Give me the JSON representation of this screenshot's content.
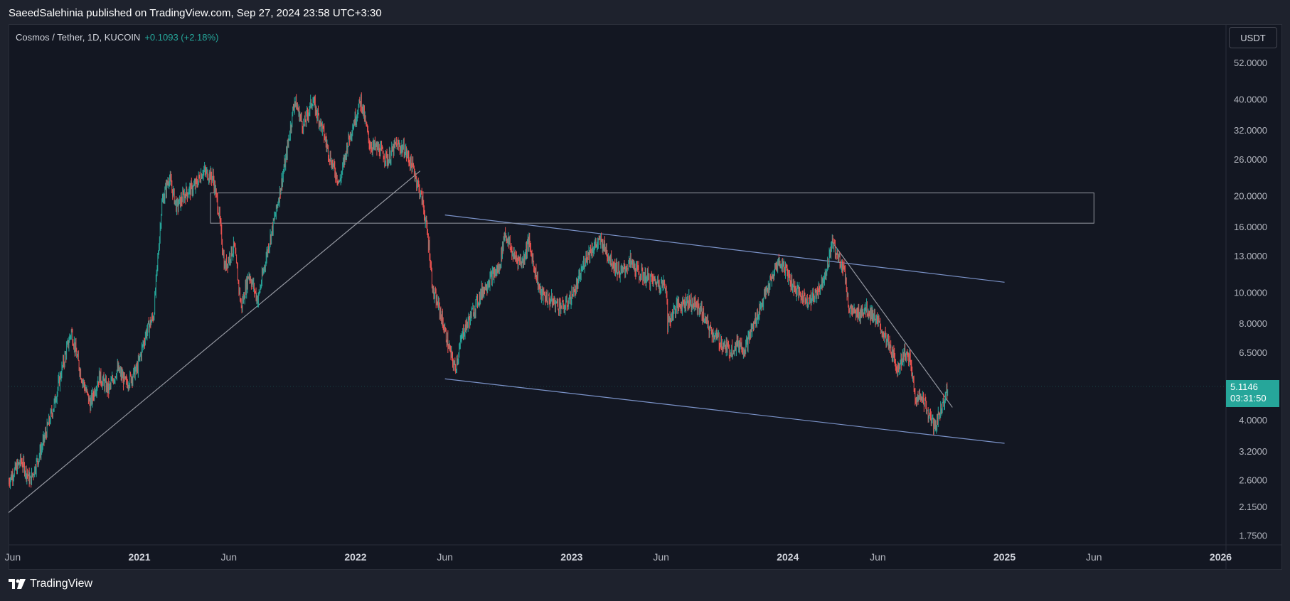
{
  "header": {
    "published": "SaeedSalehinia published on TradingView.com, Sep 27, 2024 23:58 UTC+3:30"
  },
  "legend": {
    "symbol": "Cosmos / Tether, 1D, KUCOIN",
    "change": "+0.1093 (+2.18%)"
  },
  "currency_button": "USDT",
  "price_tag": {
    "price": "5.1146",
    "countdown": "03:31:50"
  },
  "brand": {
    "name": "TradingView"
  },
  "colors": {
    "up": "#26a69a",
    "down": "#ef5350",
    "channel": "#7b93c9",
    "trendline": "#9598a1",
    "background": "#131722"
  },
  "chart_data": {
    "type": "candlestick",
    "title": "Cosmos / Tether, 1D, KUCOIN",
    "y_scale": "log",
    "y_ticks": [
      "52.0000",
      "40.0000",
      "32.0000",
      "26.0000",
      "20.0000",
      "16.0000",
      "13.0000",
      "10.0000",
      "8.0000",
      "6.5000",
      "4.0000",
      "3.2000",
      "2.6000",
      "2.1500",
      "1.7500"
    ],
    "x_ticks": [
      "Jun",
      "2021",
      "Jun",
      "2022",
      "Jun",
      "2023",
      "Jun",
      "2024",
      "Jun",
      "2025",
      "Jun",
      "2026"
    ],
    "x_range": [
      "2020-05-25",
      "2026-01-10"
    ],
    "y_range": [
      1.7,
      55
    ],
    "price_path": [
      [
        "2020-05-25",
        2.6
      ],
      [
        "2020-06-15",
        3.0
      ],
      [
        "2020-07-01",
        2.6
      ],
      [
        "2020-07-20",
        3.3
      ],
      [
        "2020-08-10",
        4.5
      ],
      [
        "2020-08-25",
        6.0
      ],
      [
        "2020-09-08",
        7.6
      ],
      [
        "2020-09-25",
        5.5
      ],
      [
        "2020-10-10",
        4.5
      ],
      [
        "2020-10-25",
        5.5
      ],
      [
        "2020-11-10",
        5.0
      ],
      [
        "2020-11-25",
        5.8
      ],
      [
        "2020-12-10",
        5.2
      ],
      [
        "2020-12-28",
        5.8
      ],
      [
        "2021-01-12",
        7.5
      ],
      [
        "2021-01-25",
        8.5
      ],
      [
        "2021-02-08",
        19.0
      ],
      [
        "2021-02-20",
        23.0
      ],
      [
        "2021-03-05",
        18.5
      ],
      [
        "2021-03-20",
        20.5
      ],
      [
        "2021-04-05",
        21.5
      ],
      [
        "2021-04-18",
        24.0
      ],
      [
        "2021-05-05",
        23.0
      ],
      [
        "2021-05-15",
        18.0
      ],
      [
        "2021-05-25",
        12.0
      ],
      [
        "2021-06-10",
        14.0
      ],
      [
        "2021-06-22",
        9.0
      ],
      [
        "2021-07-05",
        11.5
      ],
      [
        "2021-07-20",
        9.5
      ],
      [
        "2021-08-05",
        13.5
      ],
      [
        "2021-08-20",
        18.0
      ],
      [
        "2021-09-05",
        26.0
      ],
      [
        "2021-09-20",
        40.0
      ],
      [
        "2021-10-05",
        33.0
      ],
      [
        "2021-10-20",
        40.0
      ],
      [
        "2021-11-05",
        33.0
      ],
      [
        "2021-11-20",
        26.0
      ],
      [
        "2021-12-05",
        22.0
      ],
      [
        "2021-12-20",
        30.0
      ],
      [
        "2022-01-10",
        40.0
      ],
      [
        "2022-01-25",
        29.0
      ],
      [
        "2022-02-10",
        28.0
      ],
      [
        "2022-02-25",
        26.0
      ],
      [
        "2022-03-10",
        29.0
      ],
      [
        "2022-03-25",
        28.0
      ],
      [
        "2022-04-10",
        24.0
      ],
      [
        "2022-04-25",
        19.0
      ],
      [
        "2022-05-05",
        14.0
      ],
      [
        "2022-05-12",
        10.0
      ],
      [
        "2022-05-22",
        9.0
      ],
      [
        "2022-06-10",
        6.5
      ],
      [
        "2022-06-18",
        5.8
      ],
      [
        "2022-07-01",
        7.5
      ],
      [
        "2022-07-15",
        8.5
      ],
      [
        "2022-08-01",
        10.0
      ],
      [
        "2022-08-15",
        11.0
      ],
      [
        "2022-09-01",
        12.0
      ],
      [
        "2022-09-10",
        15.5
      ],
      [
        "2022-09-25",
        13.0
      ],
      [
        "2022-10-10",
        12.5
      ],
      [
        "2022-10-20",
        14.5
      ],
      [
        "2022-11-09",
        10.0
      ],
      [
        "2022-11-25",
        9.5
      ],
      [
        "2022-12-20",
        9.0
      ],
      [
        "2023-01-10",
        10.5
      ],
      [
        "2023-01-25",
        13.0
      ],
      [
        "2023-02-08",
        14.0
      ],
      [
        "2023-02-20",
        14.5
      ],
      [
        "2023-03-10",
        12.5
      ],
      [
        "2023-03-25",
        11.5
      ],
      [
        "2023-04-10",
        12.5
      ],
      [
        "2023-04-25",
        11.5
      ],
      [
        "2023-05-15",
        11.0
      ],
      [
        "2023-06-10",
        10.5
      ],
      [
        "2023-06-12",
        8.0
      ],
      [
        "2023-06-25",
        9.0
      ],
      [
        "2023-07-15",
        9.5
      ],
      [
        "2023-08-05",
        9.0
      ],
      [
        "2023-08-20",
        7.8
      ],
      [
        "2023-09-10",
        7.0
      ],
      [
        "2023-09-25",
        6.6
      ],
      [
        "2023-10-10",
        7.0
      ],
      [
        "2023-10-20",
        6.7
      ],
      [
        "2023-11-05",
        8.0
      ],
      [
        "2023-11-20",
        9.5
      ],
      [
        "2023-12-05",
        11.0
      ],
      [
        "2023-12-15",
        12.5
      ],
      [
        "2023-12-28",
        12.0
      ],
      [
        "2024-01-10",
        10.5
      ],
      [
        "2024-01-25",
        9.7
      ],
      [
        "2024-02-10",
        9.5
      ],
      [
        "2024-02-25",
        10.5
      ],
      [
        "2024-03-10",
        12.5
      ],
      [
        "2024-03-15",
        14.5
      ],
      [
        "2024-03-25",
        13.0
      ],
      [
        "2024-04-05",
        12.0
      ],
      [
        "2024-04-13",
        9.0
      ],
      [
        "2024-04-25",
        8.5
      ],
      [
        "2024-05-10",
        9.0
      ],
      [
        "2024-05-25",
        8.5
      ],
      [
        "2024-06-10",
        7.5
      ],
      [
        "2024-06-25",
        6.5
      ],
      [
        "2024-07-05",
        5.8
      ],
      [
        "2024-07-15",
        6.5
      ],
      [
        "2024-07-25",
        6.2
      ],
      [
        "2024-08-05",
        4.6
      ],
      [
        "2024-08-15",
        4.8
      ],
      [
        "2024-08-25",
        4.2
      ],
      [
        "2024-09-05",
        3.8
      ],
      [
        "2024-09-15",
        4.3
      ],
      [
        "2024-09-27",
        5.11
      ]
    ],
    "drawings": [
      {
        "kind": "trendline",
        "from": [
          "2020-05-01",
          1.9
        ],
        "to": [
          "2022-04-20",
          24.0
        ]
      },
      {
        "kind": "channel-upper",
        "from": [
          "2022-06-01",
          17.5
        ],
        "to": [
          "2025-01-01",
          10.8
        ]
      },
      {
        "kind": "channel-lower",
        "from": [
          "2022-06-01",
          5.4
        ],
        "to": [
          "2025-01-01",
          3.4
        ]
      },
      {
        "kind": "breakout-line",
        "from": [
          "2024-03-15",
          14.5
        ],
        "to": [
          "2024-10-05",
          4.4
        ]
      },
      {
        "kind": "zone",
        "from": [
          "2021-05-01",
          20.5
        ],
        "to": [
          "2025-06-01",
          16.5
        ]
      }
    ]
  }
}
